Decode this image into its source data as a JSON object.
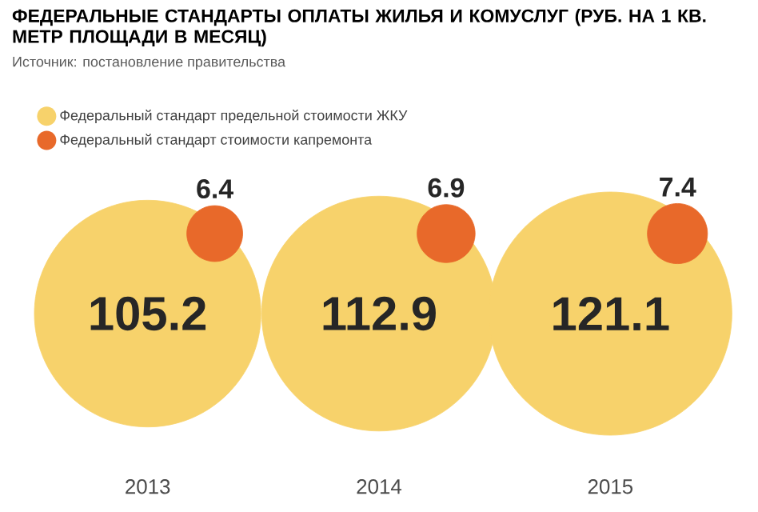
{
  "chart_data": {
    "type": "other",
    "title": "ФЕДЕРАЛЬНЫЕ СТАНДАРТЫ ОПЛАТЫ ЖИЛЬЯ И КОМУСЛУГ (РУБ. НА 1 КВ. МЕТР ПЛОЩАДИ В МЕСЯЦ)",
    "annotations": [
      "Источник: постановление правительства"
    ],
    "categories": [
      "2013",
      "2014",
      "2015"
    ],
    "series": [
      {
        "name": "Федеральный стандарт предельной стоимости ЖКУ",
        "color": "#f7d26b",
        "values": [
          105.2,
          112.9,
          121.1
        ]
      },
      {
        "name": "Федеральный стандарт стоимости капремонта",
        "color": "#e8692a",
        "values": [
          6.4,
          6.9,
          7.4
        ]
      }
    ],
    "data_labels": true,
    "legend": "top left"
  }
}
